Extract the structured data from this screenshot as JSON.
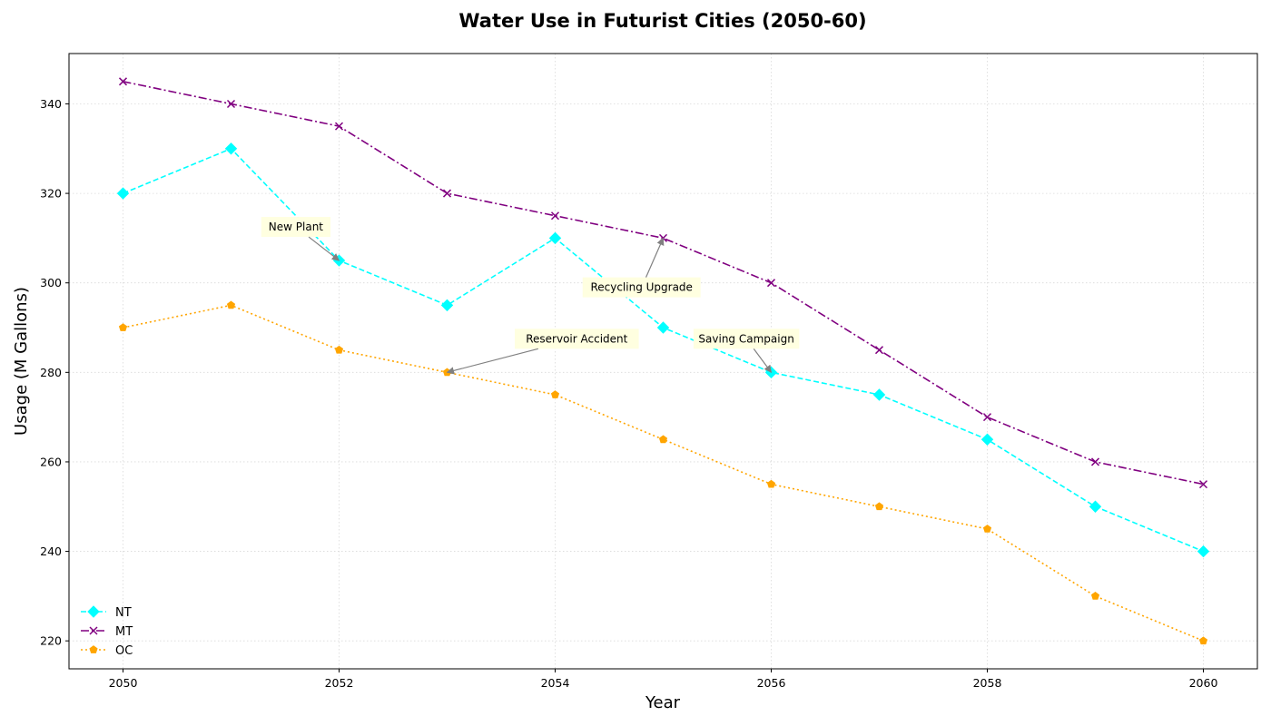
{
  "chart_data": {
    "type": "line",
    "title": "Water Use in Futurist Cities (2050-60)",
    "xlabel": "Year",
    "ylabel": "Usage (M Gallons)",
    "x": [
      2050,
      2051,
      2052,
      2053,
      2054,
      2055,
      2056,
      2057,
      2058,
      2059,
      2060
    ],
    "x_ticks": [
      2050,
      2052,
      2054,
      2056,
      2058,
      2060
    ],
    "y_ticks": [
      220,
      240,
      260,
      280,
      300,
      320,
      340
    ],
    "xlim": [
      2049.5,
      2060.5
    ],
    "ylim": [
      213.75,
      351.25
    ],
    "grid": true,
    "legend_position": "lower-left",
    "series": [
      {
        "name": "NT",
        "color": "#00ffff",
        "line_style": "dashed",
        "marker": "diamond",
        "values": [
          320,
          330,
          305,
          295,
          310,
          290,
          280,
          275,
          265,
          250,
          240
        ]
      },
      {
        "name": "MT",
        "color": "#800080",
        "line_style": "dash-dot",
        "marker": "x",
        "values": [
          345,
          340,
          335,
          320,
          315,
          310,
          300,
          285,
          270,
          260,
          255
        ]
      },
      {
        "name": "OC",
        "color": "#ffa500",
        "line_style": "dotted",
        "marker": "pentagon",
        "values": [
          290,
          295,
          285,
          280,
          275,
          265,
          255,
          250,
          245,
          230,
          220
        ]
      }
    ],
    "annotations": [
      {
        "text": "New Plant",
        "point": [
          2052,
          305
        ],
        "text_pos": [
          2051.6,
          312.5
        ]
      },
      {
        "text": "Recycling Upgrade",
        "point": [
          2055,
          310
        ],
        "text_pos": [
          2054.8,
          299
        ]
      },
      {
        "text": "Reservoir Accident",
        "point": [
          2053,
          280
        ],
        "text_pos": [
          2054.2,
          287.5
        ]
      },
      {
        "text": "Saving Campaign",
        "point": [
          2056,
          280
        ],
        "text_pos": [
          2055.77,
          287.5
        ]
      }
    ]
  },
  "colors": {
    "annotation_box": "#ffffe0",
    "arrow": "#808080",
    "grid": "#d9d9d9"
  }
}
